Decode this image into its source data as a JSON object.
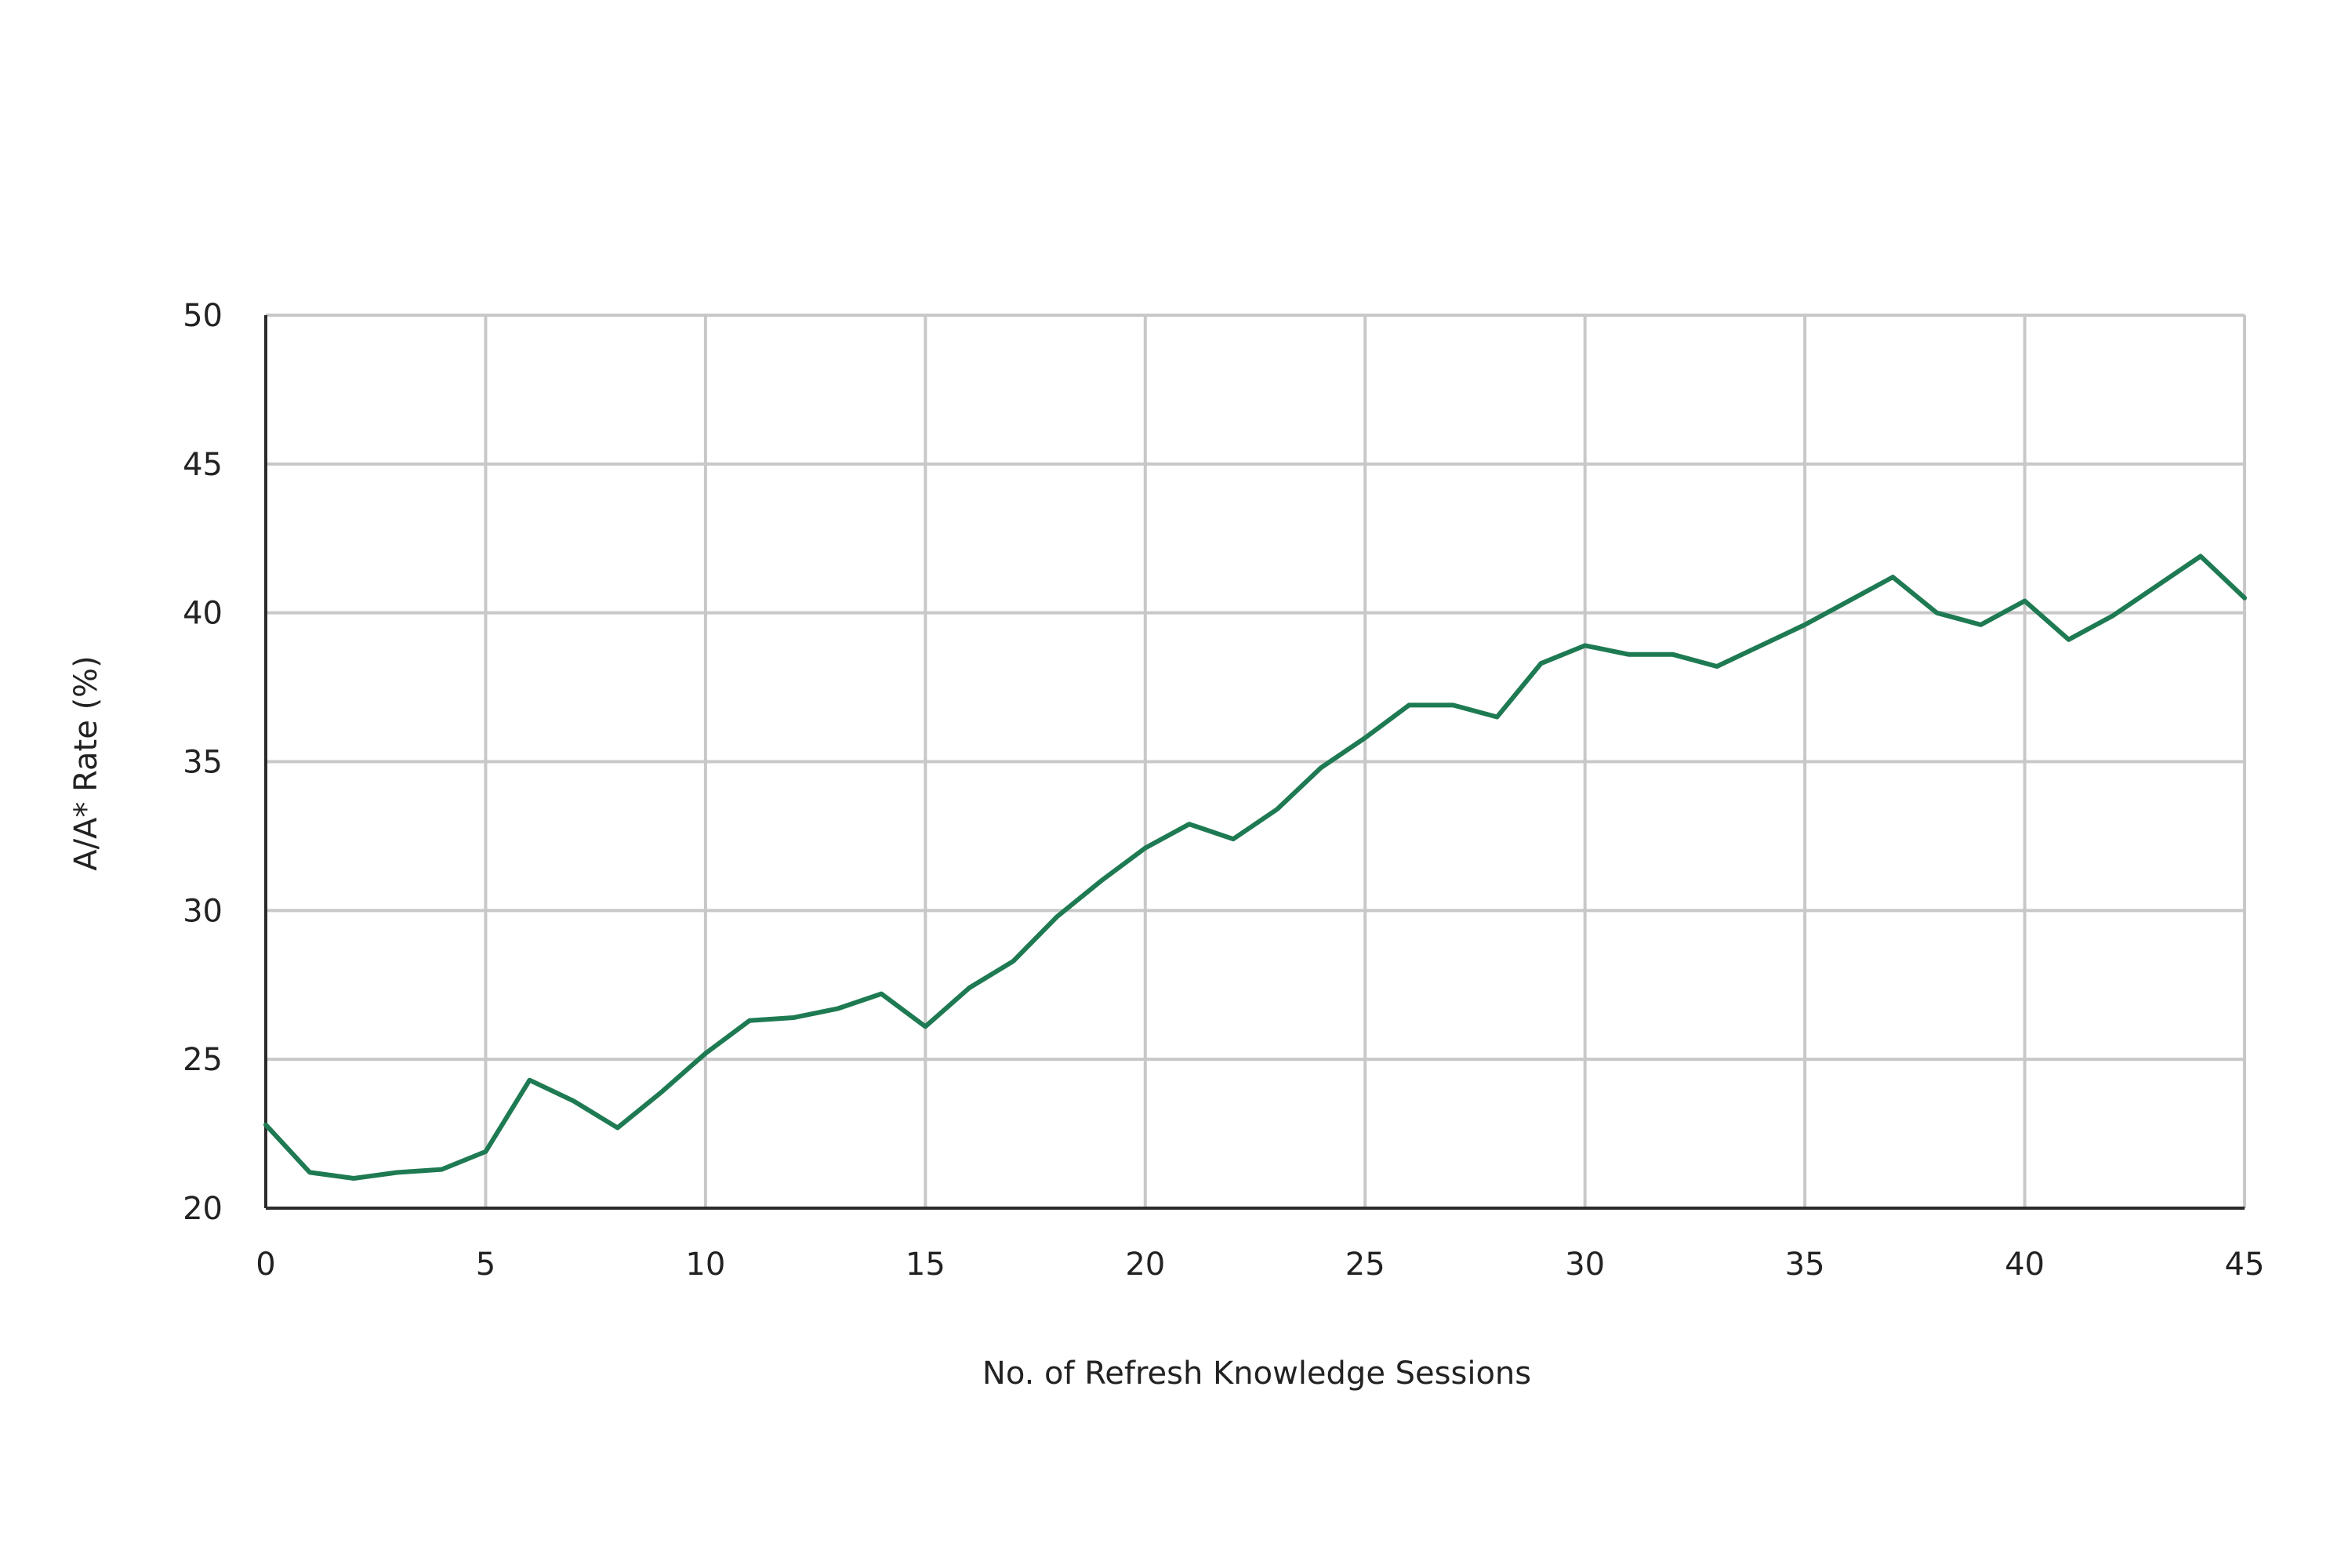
{
  "chart_data": {
    "type": "line",
    "title": "",
    "xlabel": "No. of Refresh Knowledge Sessions",
    "ylabel": "A/A* Rate (%)",
    "xlim": [
      0,
      45
    ],
    "ylim": [
      20,
      50
    ],
    "x_ticks": [
      0,
      5,
      10,
      15,
      20,
      25,
      30,
      35,
      40,
      45
    ],
    "y_ticks": [
      20,
      25,
      30,
      35,
      40,
      45,
      50
    ],
    "grid": true,
    "legend": "none",
    "series": [
      {
        "color": "#1e7a52",
        "x": [
          0,
          1,
          2,
          3,
          4,
          5,
          6,
          7,
          8,
          9,
          10,
          11,
          12,
          13,
          14,
          15,
          16,
          17,
          18,
          19,
          20,
          21,
          22,
          23,
          24,
          25,
          26,
          27,
          28,
          29,
          30,
          31,
          32,
          33,
          34,
          35,
          36,
          37,
          38,
          39,
          40,
          41,
          42,
          43,
          44,
          45
        ],
        "y": [
          22.8,
          21.2,
          21.0,
          21.2,
          21.3,
          21.9,
          24.3,
          23.6,
          22.7,
          23.9,
          25.2,
          26.3,
          26.4,
          26.7,
          27.2,
          26.1,
          27.4,
          28.3,
          29.8,
          31.0,
          32.1,
          32.9,
          32.4,
          33.4,
          34.8,
          35.8,
          36.9,
          36.9,
          36.5,
          38.3,
          38.9,
          38.6,
          38.6,
          38.2,
          38.9,
          39.6,
          40.4,
          41.2,
          40.0,
          39.6,
          40.4,
          39.1,
          39.9,
          40.9,
          41.9,
          40.5
        ]
      }
    ]
  }
}
